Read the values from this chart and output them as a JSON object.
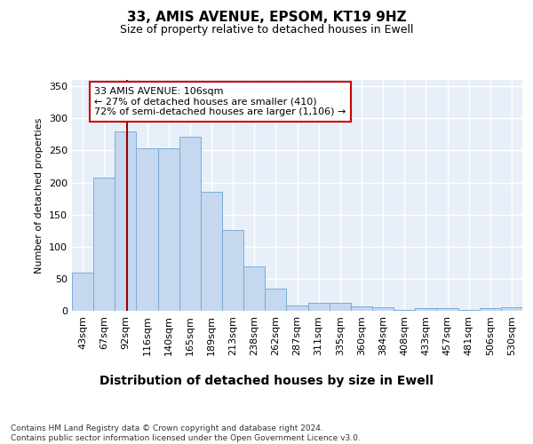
{
  "title": "33, AMIS AVENUE, EPSOM, KT19 9HZ",
  "subtitle": "Size of property relative to detached houses in Ewell",
  "xlabel": "Distribution of detached houses by size in Ewell",
  "ylabel": "Number of detached properties",
  "categories": [
    "43sqm",
    "67sqm",
    "92sqm",
    "116sqm",
    "140sqm",
    "165sqm",
    "189sqm",
    "213sqm",
    "238sqm",
    "262sqm",
    "287sqm",
    "311sqm",
    "335sqm",
    "360sqm",
    "384sqm",
    "408sqm",
    "433sqm",
    "457sqm",
    "481sqm",
    "506sqm",
    "530sqm"
  ],
  "values": [
    60,
    208,
    280,
    253,
    253,
    272,
    186,
    126,
    69,
    35,
    9,
    12,
    13,
    7,
    5,
    2,
    4,
    4,
    1,
    4,
    5
  ],
  "bar_color": "#c5d8f0",
  "bar_edge_color": "#7aadd4",
  "background_color": "#e8eff9",
  "grid_color": "#ffffff",
  "annotation_line_color": "#990000",
  "annotation_box_text_line1": "33 AMIS AVENUE: 106sqm",
  "annotation_box_text_line2": "← 27% of detached houses are smaller (410)",
  "annotation_box_text_line3": "72% of semi-detached houses are larger (1,106) →",
  "annotation_box_color": "#ffffff",
  "annotation_box_border": "#cc0000",
  "footnote": "Contains HM Land Registry data © Crown copyright and database right 2024.\nContains public sector information licensed under the Open Government Licence v3.0.",
  "ylim": [
    0,
    360
  ],
  "yticks": [
    0,
    50,
    100,
    150,
    200,
    250,
    300,
    350
  ],
  "fig_bg": "#ffffff",
  "title_fontsize": 11,
  "subtitle_fontsize": 9,
  "ylabel_fontsize": 8,
  "xlabel_fontsize": 10,
  "tick_fontsize": 8,
  "footnote_fontsize": 6.5
}
